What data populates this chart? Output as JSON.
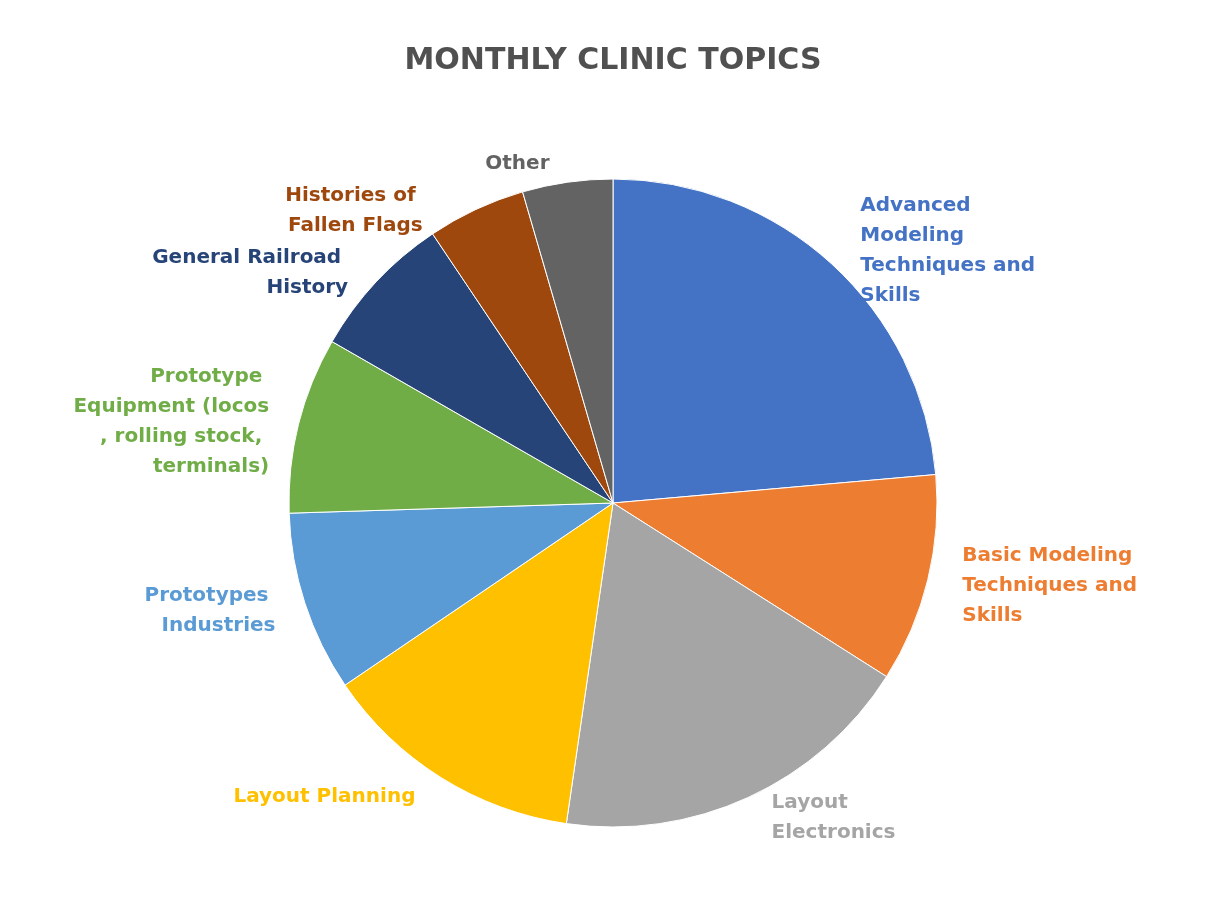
{
  "chart_data": {
    "type": "pie",
    "title": "MONTHLY CLINIC TOPICS",
    "categories": [
      "Advanced Modeling Techniques and Skills",
      "Basic Modeling Techniques and Skills",
      "Layout Electronics",
      "Layout Planning",
      "Prototypes Industries",
      "Prototype Equipment (locos, rolling stock, terminals)",
      "General Railroad History",
      "Histories of Fallen Flags",
      "Other"
    ],
    "values": [
      23.6,
      10.4,
      18.3,
      13.2,
      9.0,
      8.8,
      7.3,
      4.9,
      4.5
    ],
    "colors": [
      "#4472c4",
      "#ed7d31",
      "#a5a5a5",
      "#ffc000",
      "#5b9bd5",
      "#70ad47",
      "#264478",
      "#9e480e",
      "#636363"
    ],
    "legend": false
  }
}
